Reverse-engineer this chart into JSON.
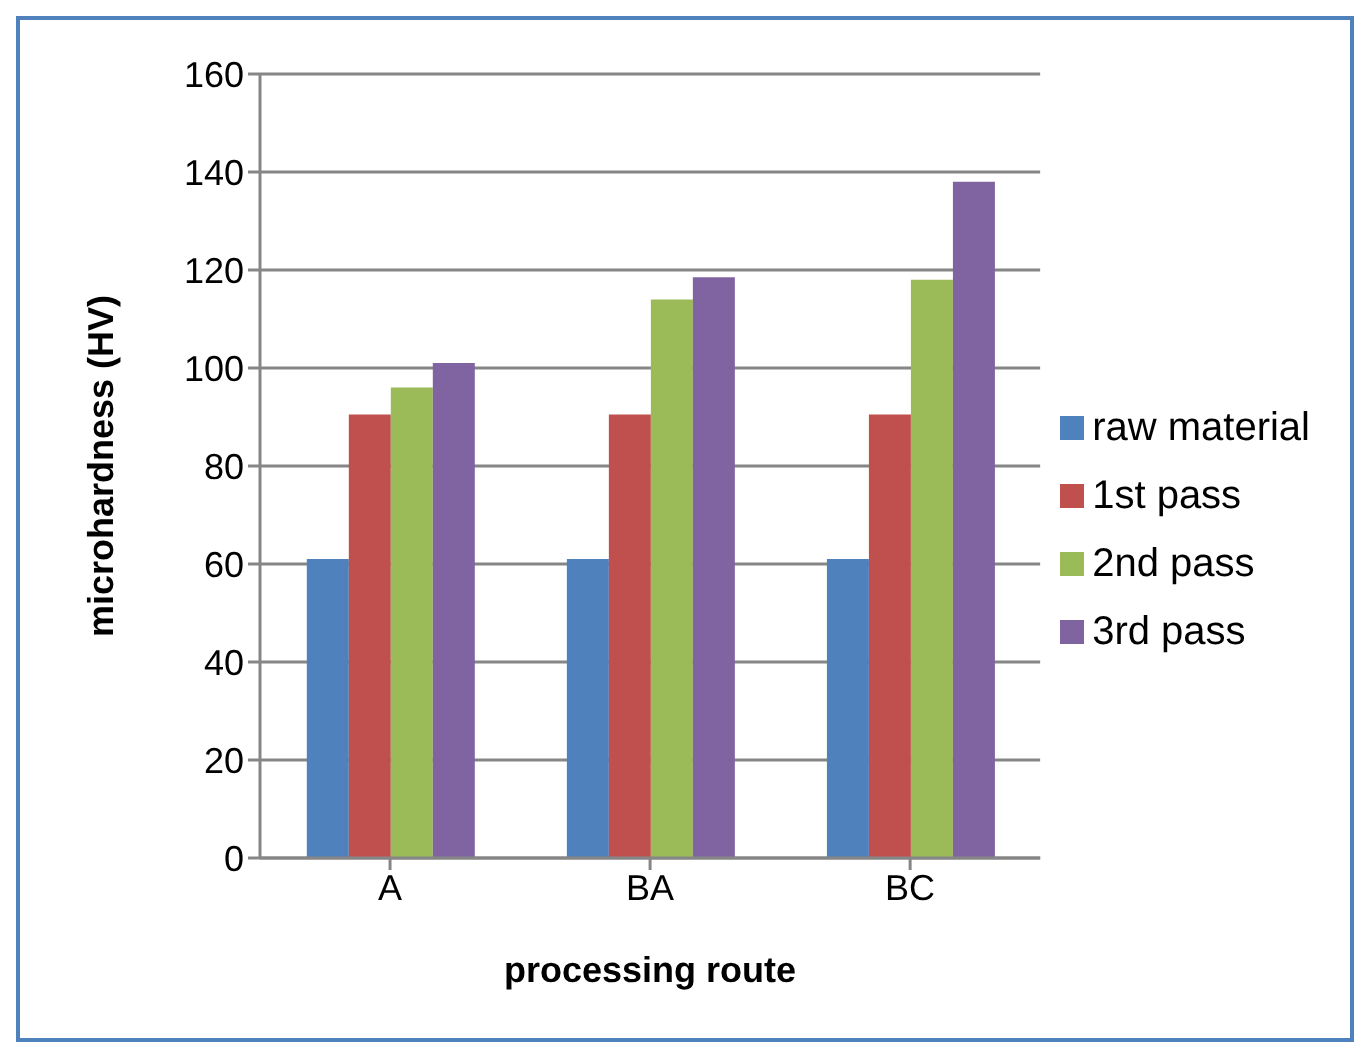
{
  "chart_data": {
    "type": "bar",
    "xlabel": "processing route",
    "ylabel": "microhardness (HV)",
    "categories": [
      "A",
      "BA",
      "BC"
    ],
    "series": [
      {
        "name": "raw material",
        "color": "#4f81bd",
        "values": [
          61,
          61,
          61
        ]
      },
      {
        "name": "1st pass",
        "color": "#c0504d",
        "values": [
          90.5,
          90.5,
          90.5
        ]
      },
      {
        "name": "2nd pass",
        "color": "#9bbb59",
        "values": [
          96,
          114,
          118
        ]
      },
      {
        "name": "3rd pass",
        "color": "#8064a2",
        "values": [
          101,
          118.5,
          138
        ]
      }
    ],
    "ylim": [
      0,
      160
    ],
    "yticks": [
      0,
      20,
      40,
      60,
      80,
      100,
      120,
      140,
      160
    ],
    "grid": "y",
    "legend": "right"
  }
}
